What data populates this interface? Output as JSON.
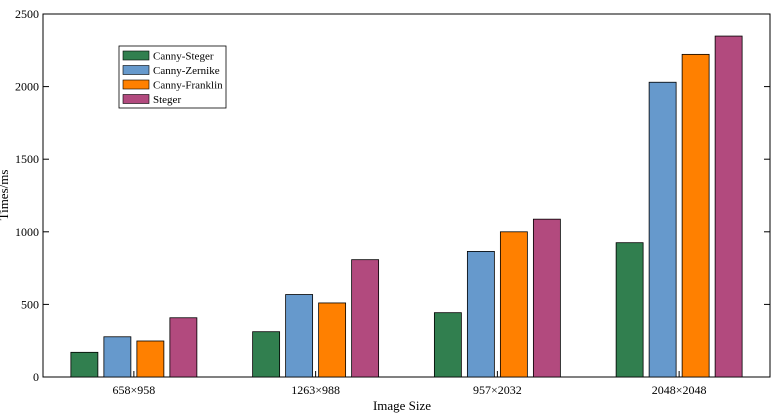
{
  "chart_data": {
    "type": "bar",
    "title": "",
    "xlabel": "Image Size",
    "ylabel": "Times/ms",
    "categories": [
      "658×958",
      "1263×988",
      "957×2032",
      "2048×2048"
    ],
    "ylim": [
      0,
      2500
    ],
    "yticks": [
      0,
      500,
      1000,
      1500,
      2000,
      2500
    ],
    "grid": false,
    "legend_position": "top-left",
    "series": [
      {
        "name": "Canny-Steger",
        "color": "#317f4f",
        "values": [
          170,
          312,
          443,
          925
        ]
      },
      {
        "name": "Canny-Zernike",
        "color": "#6699cc",
        "values": [
          277,
          568,
          865,
          2030
        ]
      },
      {
        "name": "Canny-Franklin",
        "color": "#ff8000",
        "values": [
          248,
          510,
          1000,
          2222
        ]
      },
      {
        "name": "Steger",
        "color": "#b24a7e",
        "values": [
          408,
          808,
          1087,
          2348
        ]
      }
    ]
  }
}
